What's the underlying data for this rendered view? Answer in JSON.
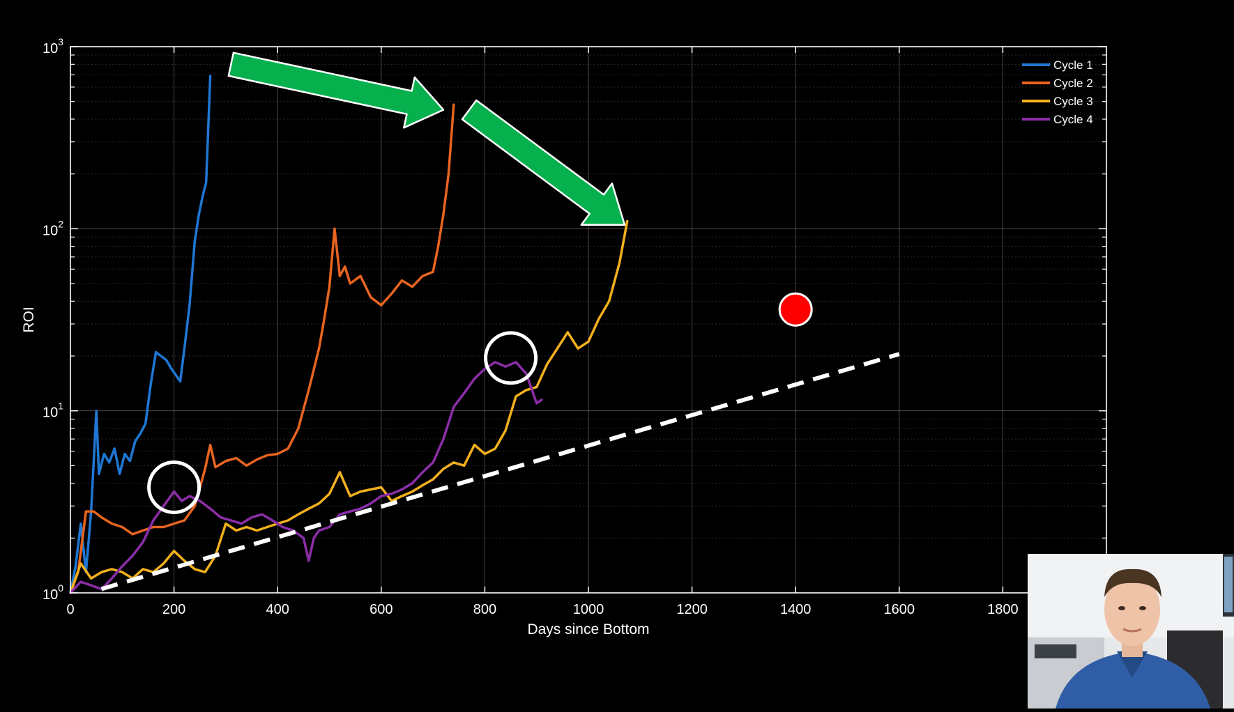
{
  "chart_data": {
    "type": "line",
    "xlabel": "Days since Bottom",
    "ylabel": "ROI",
    "xlim": [
      0,
      2000
    ],
    "ylim": [
      1,
      1000
    ],
    "yscale": "log",
    "grid": true,
    "legend_position": "top-right",
    "x_ticks": [
      "0",
      "200",
      "400",
      "600",
      "800",
      "1000",
      "1200",
      "1400",
      "1600",
      "1800"
    ],
    "y_ticks": [
      {
        "base": "10",
        "exp": "0"
      },
      {
        "base": "10",
        "exp": "1"
      },
      {
        "base": "10",
        "exp": "2"
      },
      {
        "base": "10",
        "exp": "3"
      }
    ],
    "series": [
      {
        "name": "Cycle 1",
        "color": "#1f77d4",
        "points": [
          [
            0,
            1.0
          ],
          [
            10,
            1.4
          ],
          [
            20,
            2.4
          ],
          [
            30,
            1.3
          ],
          [
            40,
            2.8
          ],
          [
            50,
            10.0
          ],
          [
            55,
            4.5
          ],
          [
            65,
            5.8
          ],
          [
            75,
            5.2
          ],
          [
            85,
            6.2
          ],
          [
            95,
            4.5
          ],
          [
            105,
            5.8
          ],
          [
            115,
            5.3
          ],
          [
            125,
            6.8
          ],
          [
            135,
            7.5
          ],
          [
            145,
            8.5
          ],
          [
            155,
            14
          ],
          [
            165,
            21
          ],
          [
            175,
            20
          ],
          [
            185,
            19
          ],
          [
            195,
            17
          ],
          [
            205,
            15.5
          ],
          [
            212,
            14.5
          ],
          [
            220,
            22
          ],
          [
            230,
            38
          ],
          [
            240,
            85
          ],
          [
            248,
            120
          ],
          [
            255,
            150
          ],
          [
            262,
            180
          ],
          [
            270,
            690
          ]
        ]
      },
      {
        "name": "Cycle 2",
        "color": "#e8641f",
        "points": [
          [
            0,
            1.0
          ],
          [
            15,
            1.3
          ],
          [
            30,
            2.8
          ],
          [
            45,
            2.8
          ],
          [
            60,
            2.6
          ],
          [
            80,
            2.4
          ],
          [
            100,
            2.3
          ],
          [
            120,
            2.1
          ],
          [
            140,
            2.2
          ],
          [
            160,
            2.3
          ],
          [
            180,
            2.3
          ],
          [
            200,
            2.4
          ],
          [
            220,
            2.5
          ],
          [
            240,
            3.0
          ],
          [
            260,
            4.8
          ],
          [
            270,
            6.5
          ],
          [
            280,
            4.9
          ],
          [
            300,
            5.3
          ],
          [
            320,
            5.5
          ],
          [
            340,
            5.0
          ],
          [
            360,
            5.4
          ],
          [
            380,
            5.7
          ],
          [
            400,
            5.8
          ],
          [
            420,
            6.2
          ],
          [
            440,
            8.0
          ],
          [
            460,
            13
          ],
          [
            480,
            22
          ],
          [
            490,
            32
          ],
          [
            500,
            48
          ],
          [
            510,
            100
          ],
          [
            520,
            55
          ],
          [
            530,
            62
          ],
          [
            540,
            50
          ],
          [
            560,
            55
          ],
          [
            580,
            42
          ],
          [
            600,
            38
          ],
          [
            620,
            44
          ],
          [
            640,
            52
          ],
          [
            660,
            48
          ],
          [
            680,
            55
          ],
          [
            700,
            58
          ],
          [
            710,
            80
          ],
          [
            720,
            120
          ],
          [
            730,
            200
          ],
          [
            740,
            480
          ]
        ]
      },
      {
        "name": "Cycle 3",
        "color": "#f2b01e",
        "points": [
          [
            0,
            1.0
          ],
          [
            20,
            1.45
          ],
          [
            40,
            1.2
          ],
          [
            60,
            1.3
          ],
          [
            80,
            1.35
          ],
          [
            100,
            1.3
          ],
          [
            120,
            1.2
          ],
          [
            140,
            1.35
          ],
          [
            160,
            1.3
          ],
          [
            180,
            1.45
          ],
          [
            200,
            1.7
          ],
          [
            220,
            1.5
          ],
          [
            240,
            1.35
          ],
          [
            260,
            1.3
          ],
          [
            280,
            1.6
          ],
          [
            300,
            2.4
          ],
          [
            320,
            2.2
          ],
          [
            340,
            2.3
          ],
          [
            360,
            2.2
          ],
          [
            380,
            2.3
          ],
          [
            400,
            2.4
          ],
          [
            420,
            2.5
          ],
          [
            440,
            2.7
          ],
          [
            460,
            2.9
          ],
          [
            480,
            3.1
          ],
          [
            500,
            3.5
          ],
          [
            520,
            4.6
          ],
          [
            540,
            3.4
          ],
          [
            560,
            3.6
          ],
          [
            580,
            3.7
          ],
          [
            600,
            3.8
          ],
          [
            620,
            3.2
          ],
          [
            640,
            3.4
          ],
          [
            660,
            3.6
          ],
          [
            680,
            3.9
          ],
          [
            700,
            4.2
          ],
          [
            720,
            4.8
          ],
          [
            740,
            5.2
          ],
          [
            760,
            5.0
          ],
          [
            780,
            6.5
          ],
          [
            800,
            5.8
          ],
          [
            820,
            6.2
          ],
          [
            840,
            7.8
          ],
          [
            860,
            12
          ],
          [
            880,
            13
          ],
          [
            900,
            13.5
          ],
          [
            920,
            18
          ],
          [
            940,
            22
          ],
          [
            960,
            27
          ],
          [
            980,
            22
          ],
          [
            1000,
            24
          ],
          [
            1020,
            32
          ],
          [
            1040,
            40
          ],
          [
            1060,
            65
          ],
          [
            1075,
            110
          ]
        ]
      },
      {
        "name": "Cycle 4",
        "color": "#8b2ea8",
        "points": [
          [
            0,
            1.0
          ],
          [
            20,
            1.15
          ],
          [
            40,
            1.1
          ],
          [
            60,
            1.05
          ],
          [
            80,
            1.2
          ],
          [
            100,
            1.4
          ],
          [
            120,
            1.6
          ],
          [
            140,
            1.9
          ],
          [
            160,
            2.5
          ],
          [
            180,
            3.0
          ],
          [
            200,
            3.6
          ],
          [
            215,
            3.2
          ],
          [
            230,
            3.4
          ],
          [
            250,
            3.2
          ],
          [
            270,
            2.9
          ],
          [
            290,
            2.6
          ],
          [
            310,
            2.5
          ],
          [
            330,
            2.4
          ],
          [
            350,
            2.6
          ],
          [
            370,
            2.7
          ],
          [
            390,
            2.5
          ],
          [
            410,
            2.3
          ],
          [
            430,
            2.2
          ],
          [
            450,
            2.0
          ],
          [
            460,
            1.5
          ],
          [
            470,
            2.0
          ],
          [
            480,
            2.2
          ],
          [
            500,
            2.3
          ],
          [
            520,
            2.7
          ],
          [
            540,
            2.8
          ],
          [
            560,
            2.9
          ],
          [
            580,
            3.1
          ],
          [
            600,
            3.4
          ],
          [
            620,
            3.5
          ],
          [
            640,
            3.7
          ],
          [
            660,
            4.0
          ],
          [
            680,
            4.6
          ],
          [
            700,
            5.2
          ],
          [
            720,
            7.0
          ],
          [
            740,
            10.5
          ],
          [
            760,
            12.5
          ],
          [
            780,
            15
          ],
          [
            800,
            17
          ],
          [
            820,
            18.5
          ],
          [
            840,
            17.5
          ],
          [
            860,
            18.5
          ],
          [
            880,
            16
          ],
          [
            900,
            11
          ],
          [
            910,
            11.5
          ]
        ]
      }
    ],
    "annotations": {
      "trend_line": {
        "x": [
          60,
          1600
        ],
        "y": [
          1.05,
          20.5
        ],
        "style": "dashed",
        "color": "#ffffff"
      },
      "highlight_circles": [
        {
          "x": 200,
          "y": 3.8
        },
        {
          "x": 850,
          "y": 19.5
        }
      ],
      "red_marker": {
        "x": 1400,
        "y": 36
      },
      "arrows": [
        {
          "from": [
            310,
            800
          ],
          "to": [
            720,
            450
          ]
        },
        {
          "from": [
            770,
            450
          ],
          "to": [
            1070,
            105
          ]
        }
      ]
    }
  }
}
